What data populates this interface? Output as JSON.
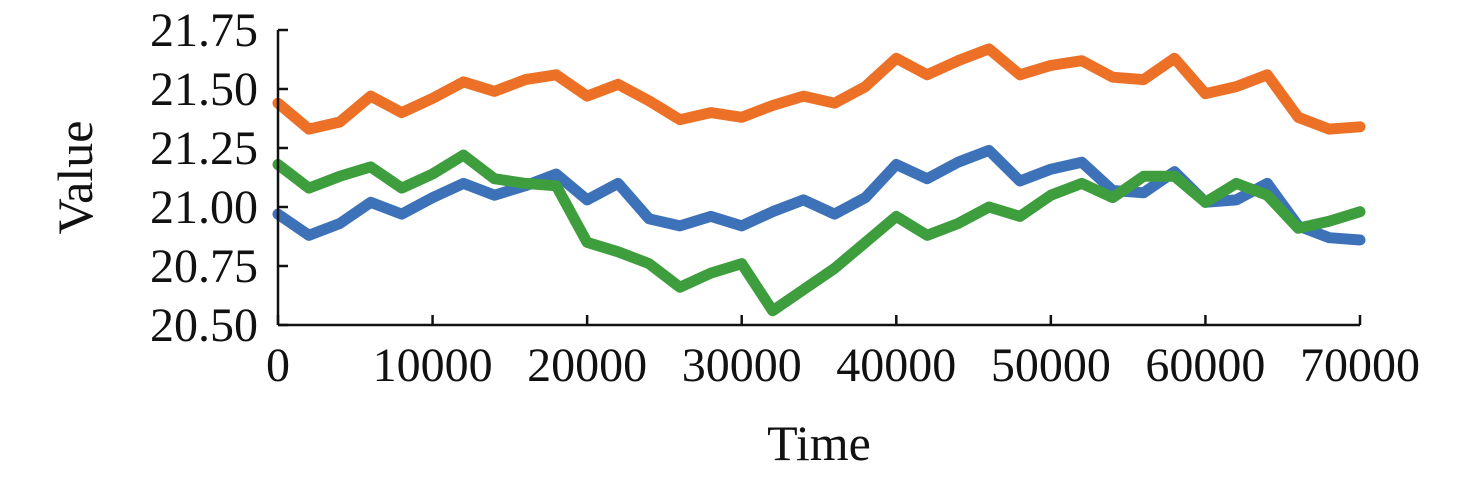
{
  "chart_data": {
    "type": "line",
    "title": "",
    "xlabel": "Time",
    "ylabel": "Value",
    "xlim": [
      0,
      70000
    ],
    "ylim": [
      20.5,
      21.75
    ],
    "xticks": [
      0,
      10000,
      20000,
      30000,
      40000,
      50000,
      60000,
      70000
    ],
    "xtick_labels": [
      "0",
      "10000",
      "20000",
      "30000",
      "40000",
      "50000",
      "60000",
      "70000"
    ],
    "yticks": [
      20.5,
      20.75,
      21.0,
      21.25,
      21.5,
      21.75
    ],
    "ytick_labels": [
      "20.50",
      "20.75",
      "21.00",
      "21.25",
      "21.50",
      "21.75"
    ],
    "grid": false,
    "legend": false,
    "x": [
      0,
      2000,
      4000,
      6000,
      8000,
      10000,
      12000,
      14000,
      16000,
      18000,
      20000,
      22000,
      24000,
      26000,
      28000,
      30000,
      32000,
      34000,
      36000,
      38000,
      40000,
      42000,
      44000,
      46000,
      48000,
      50000,
      52000,
      54000,
      56000,
      58000,
      60000,
      62000,
      64000,
      66000,
      68000,
      70000
    ],
    "series": [
      {
        "color": "#ec7126",
        "values": [
          21.44,
          21.33,
          21.36,
          21.47,
          21.4,
          21.46,
          21.53,
          21.49,
          21.54,
          21.56,
          21.47,
          21.52,
          21.45,
          21.37,
          21.4,
          21.38,
          21.43,
          21.47,
          21.44,
          21.51,
          21.63,
          21.56,
          21.62,
          21.67,
          21.56,
          21.6,
          21.62,
          21.55,
          21.54,
          21.63,
          21.48,
          21.51,
          21.56,
          21.38,
          21.33,
          21.34
        ]
      },
      {
        "color": "#3d72b8",
        "values": [
          20.97,
          20.88,
          20.93,
          21.02,
          20.97,
          21.04,
          21.1,
          21.05,
          21.09,
          21.14,
          21.03,
          21.1,
          20.95,
          20.92,
          20.96,
          20.92,
          20.98,
          21.03,
          20.97,
          21.04,
          21.18,
          21.12,
          21.19,
          21.24,
          21.11,
          21.16,
          21.19,
          21.07,
          21.06,
          21.15,
          21.02,
          21.03,
          21.1,
          20.92,
          20.87,
          20.86
        ]
      },
      {
        "color": "#3e9e3e",
        "values": [
          21.18,
          21.08,
          21.13,
          21.17,
          21.08,
          21.14,
          21.22,
          21.12,
          21.1,
          21.09,
          20.85,
          20.81,
          20.76,
          20.66,
          20.72,
          20.76,
          20.56,
          20.65,
          20.74,
          20.85,
          20.96,
          20.88,
          20.93,
          21.0,
          20.96,
          21.05,
          21.1,
          21.04,
          21.13,
          21.13,
          21.02,
          21.1,
          21.05,
          20.91,
          20.94,
          20.98
        ]
      }
    ]
  }
}
